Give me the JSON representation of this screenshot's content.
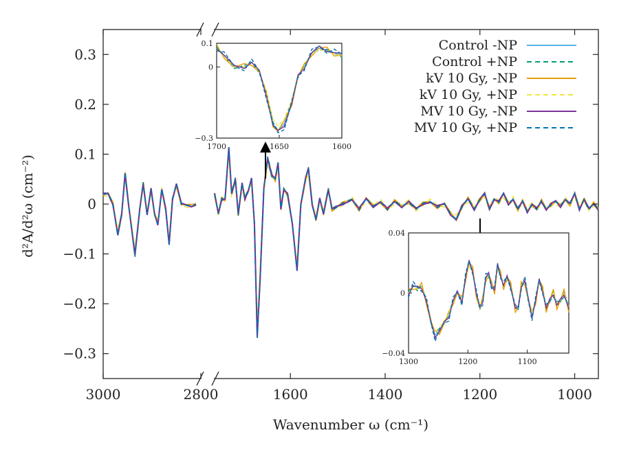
{
  "chart_data": {
    "type": "line",
    "xlabel": "Wavenumber ω (cm⁻¹)",
    "ylabel": "d²A/d²ω (cm⁻²)",
    "ylim": [
      -0.35,
      0.35
    ],
    "y_ticks": [
      0.3,
      0.2,
      0.1,
      0,
      -0.1,
      -0.2,
      -0.3
    ],
    "y_tick_labels": [
      "0.3",
      "0.2",
      "0.1",
      "0",
      "−0.1",
      "−0.2",
      "−0.3"
    ],
    "x_break": true,
    "x_segments": [
      {
        "range": [
          3000,
          2800
        ],
        "ticks": [
          3000,
          2800
        ],
        "tick_labels": [
          "3000",
          "2800"
        ]
      },
      {
        "range": [
          1760,
          950
        ],
        "ticks": [
          1600,
          1400,
          1200,
          1000
        ],
        "tick_labels": [
          "1600",
          "1400",
          "1200",
          "1000"
        ]
      }
    ],
    "legend_position": "top-right",
    "series": [
      {
        "name": "Control -NP",
        "color": "#56b4e9",
        "style": "solid"
      },
      {
        "name": "Control +NP",
        "color": "#009e73",
        "style": "dashed"
      },
      {
        "name": "kV 10 Gy, -NP",
        "color": "#e69f00",
        "style": "solid"
      },
      {
        "name": "kV 10 Gy, +NP",
        "color": "#f0e442",
        "style": "dashed"
      },
      {
        "name": "MV 10 Gy, -NP",
        "color": "#7b3294",
        "style": "solid"
      },
      {
        "name": "MV 10 Gy, +NP",
        "color": "#0072b2",
        "style": "dashed"
      }
    ],
    "common_curve": {
      "segment_1": [
        [
          3000,
          0.02
        ],
        [
          2990,
          0.02
        ],
        [
          2980,
          0.0
        ],
        [
          2970,
          -0.06
        ],
        [
          2962,
          -0.02
        ],
        [
          2955,
          0.06
        ],
        [
          2948,
          0.0
        ],
        [
          2935,
          -0.1
        ],
        [
          2925,
          -0.01
        ],
        [
          2918,
          0.04
        ],
        [
          2910,
          -0.02
        ],
        [
          2902,
          0.03
        ],
        [
          2895,
          -0.02
        ],
        [
          2888,
          -0.04
        ],
        [
          2880,
          0.03
        ],
        [
          2872,
          -0.01
        ],
        [
          2865,
          -0.08
        ],
        [
          2858,
          0.01
        ],
        [
          2850,
          0.04
        ],
        [
          2840,
          0.0
        ],
        [
          2820,
          -0.005
        ],
        [
          2810,
          0.0
        ]
      ],
      "segment_2": [
        [
          1760,
          0.02
        ],
        [
          1752,
          -0.02
        ],
        [
          1745,
          0.01
        ],
        [
          1738,
          0.01
        ],
        [
          1730,
          0.11
        ],
        [
          1724,
          0.02
        ],
        [
          1716,
          0.05
        ],
        [
          1710,
          -0.02
        ],
        [
          1702,
          0.04
        ],
        [
          1696,
          0.01
        ],
        [
          1688,
          0.03
        ],
        [
          1682,
          0.05
        ],
        [
          1676,
          -0.04
        ],
        [
          1670,
          -0.26
        ],
        [
          1664,
          -0.15
        ],
        [
          1656,
          0.03
        ],
        [
          1648,
          0.09
        ],
        [
          1640,
          0.06
        ],
        [
          1632,
          0.05
        ],
        [
          1626,
          0.08
        ],
        [
          1620,
          -0.01
        ],
        [
          1614,
          0.03
        ],
        [
          1606,
          0.02
        ],
        [
          1596,
          -0.04
        ],
        [
          1586,
          -0.13
        ],
        [
          1578,
          0.0
        ],
        [
          1568,
          0.05
        ],
        [
          1562,
          0.07
        ],
        [
          1554,
          0.0
        ],
        [
          1546,
          -0.03
        ],
        [
          1538,
          0.01
        ],
        [
          1530,
          -0.02
        ],
        [
          1520,
          0.03
        ],
        [
          1512,
          -0.01
        ],
        [
          1500,
          -0.005
        ],
        [
          1490,
          0.0
        ],
        [
          1470,
          0.01
        ],
        [
          1455,
          -0.01
        ],
        [
          1440,
          0.01
        ],
        [
          1425,
          -0.005
        ],
        [
          1410,
          0.005
        ],
        [
          1395,
          -0.01
        ],
        [
          1380,
          0.005
        ],
        [
          1365,
          -0.005
        ],
        [
          1350,
          0.005
        ],
        [
          1335,
          -0.01
        ],
        [
          1320,
          0.0
        ],
        [
          1305,
          0.005
        ],
        [
          1290,
          -0.005
        ],
        [
          1275,
          0.0
        ],
        [
          1262,
          -0.02
        ],
        [
          1250,
          -0.03
        ],
        [
          1238,
          -0.005
        ],
        [
          1225,
          0.01
        ],
        [
          1212,
          -0.01
        ],
        [
          1200,
          0.01
        ],
        [
          1190,
          0.02
        ],
        [
          1180,
          -0.01
        ],
        [
          1170,
          0.01
        ],
        [
          1160,
          0.005
        ],
        [
          1150,
          0.02
        ],
        [
          1140,
          0.0
        ],
        [
          1130,
          0.01
        ],
        [
          1120,
          -0.01
        ],
        [
          1110,
          0.005
        ],
        [
          1100,
          -0.015
        ],
        [
          1090,
          0.0
        ],
        [
          1080,
          -0.01
        ],
        [
          1070,
          0.005
        ],
        [
          1060,
          -0.01
        ],
        [
          1050,
          0.0
        ],
        [
          1040,
          0.005
        ],
        [
          1030,
          -0.005
        ],
        [
          1020,
          0.01
        ],
        [
          1010,
          0.0
        ],
        [
          1000,
          0.02
        ],
        [
          990,
          -0.01
        ],
        [
          980,
          0.01
        ],
        [
          970,
          -0.01
        ],
        [
          960,
          0.0
        ],
        [
          950,
          -0.01
        ]
      ]
    },
    "insets": [
      {
        "xlim": [
          1700,
          1600
        ],
        "ylim": [
          -0.3,
          0.1
        ],
        "x_ticks": [
          1700,
          1650,
          1600
        ],
        "x_tick_labels": [
          "1700",
          "1650",
          "1600"
        ],
        "y_ticks": [
          0.1,
          0,
          -0.3
        ],
        "y_tick_labels": [
          "0.1",
          "0",
          "−0.3"
        ],
        "curve": [
          [
            1700,
            0.08
          ],
          [
            1694,
            0.05
          ],
          [
            1686,
            0.0
          ],
          [
            1678,
            0.0
          ],
          [
            1672,
            0.02
          ],
          [
            1666,
            -0.02
          ],
          [
            1660,
            -0.12
          ],
          [
            1655,
            -0.24
          ],
          [
            1651,
            -0.27
          ],
          [
            1646,
            -0.24
          ],
          [
            1640,
            -0.15
          ],
          [
            1635,
            -0.04
          ],
          [
            1630,
            0.0
          ],
          [
            1624,
            0.06
          ],
          [
            1618,
            0.08
          ],
          [
            1612,
            0.07
          ],
          [
            1606,
            0.06
          ],
          [
            1600,
            0.05
          ]
        ]
      },
      {
        "xlim": [
          1300,
          1030
        ],
        "ylim": [
          -0.04,
          0.04
        ],
        "x_ticks": [
          1300,
          1200,
          1100
        ],
        "x_tick_labels": [
          "1300",
          "1200",
          "1100"
        ],
        "y_ticks": [
          0.04,
          0,
          -0.04
        ],
        "y_tick_labels": [
          "0.04",
          "0",
          "−0.04"
        ],
        "curve": [
          [
            1300,
            0.0
          ],
          [
            1292,
            0.005
          ],
          [
            1285,
            0.003
          ],
          [
            1278,
            0.004
          ],
          [
            1270,
            -0.005
          ],
          [
            1262,
            -0.02
          ],
          [
            1255,
            -0.028
          ],
          [
            1248,
            -0.025
          ],
          [
            1240,
            -0.02
          ],
          [
            1232,
            -0.015
          ],
          [
            1225,
            -0.005
          ],
          [
            1218,
            0.0
          ],
          [
            1210,
            -0.005
          ],
          [
            1204,
            0.01
          ],
          [
            1198,
            0.02
          ],
          [
            1192,
            0.015
          ],
          [
            1186,
            0.0
          ],
          [
            1180,
            -0.01
          ],
          [
            1175,
            -0.005
          ],
          [
            1170,
            0.01
          ],
          [
            1165,
            0.012
          ],
          [
            1160,
            0.005
          ],
          [
            1155,
            0.002
          ],
          [
            1150,
            0.018
          ],
          [
            1145,
            0.012
          ],
          [
            1140,
            0.005
          ],
          [
            1134,
            0.01
          ],
          [
            1128,
            0.005
          ],
          [
            1120,
            -0.01
          ],
          [
            1115,
            -0.01
          ],
          [
            1110,
            0.005
          ],
          [
            1104,
            0.008
          ],
          [
            1098,
            -0.005
          ],
          [
            1092,
            -0.015
          ],
          [
            1086,
            -0.005
          ],
          [
            1080,
            0.008
          ],
          [
            1074,
            0.002
          ],
          [
            1068,
            -0.01
          ],
          [
            1062,
            -0.005
          ],
          [
            1056,
            0.0
          ],
          [
            1050,
            -0.008
          ],
          [
            1044,
            -0.005
          ],
          [
            1038,
            0.0
          ],
          [
            1030,
            -0.01
          ]
        ]
      }
    ]
  }
}
